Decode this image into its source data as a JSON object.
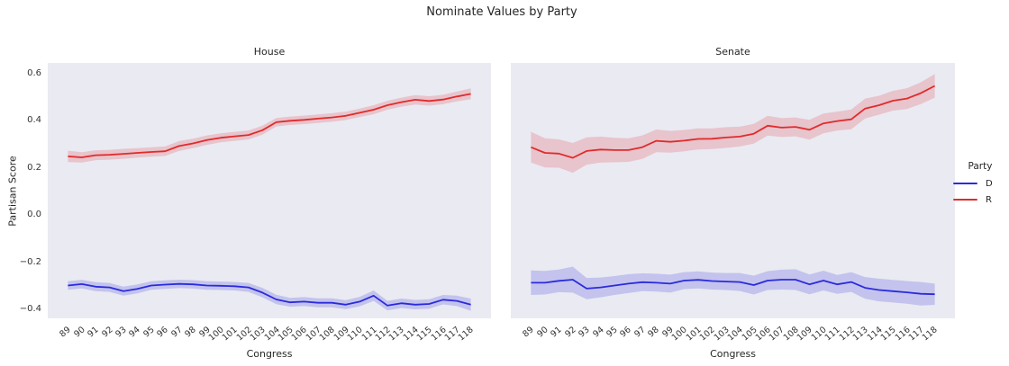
{
  "figure": {
    "title": "Nominate Values by Party",
    "panel_background": "#eaeaf2",
    "text_color": "#262626"
  },
  "legend": {
    "title": "Party",
    "entries": [
      {
        "label": "D",
        "color": "#2b2bdc"
      },
      {
        "label": "R",
        "color": "#e02b2b"
      }
    ]
  },
  "chart_data": {
    "type": "line",
    "title": "Nominate Values by Party",
    "xlabel": "Congress",
    "ylabel": "Partisan Score",
    "x": [
      89,
      90,
      91,
      92,
      93,
      94,
      95,
      96,
      97,
      98,
      99,
      100,
      101,
      102,
      103,
      104,
      105,
      106,
      107,
      108,
      109,
      110,
      111,
      112,
      113,
      114,
      115,
      116,
      117,
      118
    ],
    "ylim": [
      -0.437,
      0.645
    ],
    "yticks": [
      0.6,
      0.4,
      0.2,
      0.0,
      -0.2,
      -0.4
    ],
    "grid": false,
    "legend_position": "right",
    "band_alpha": 0.22,
    "facets": [
      {
        "label": "House",
        "series": [
          {
            "name": "D",
            "color": "#2b2bdc",
            "band_color": "rgba(60,60,225,0.22)",
            "values": [
              -0.298,
              -0.292,
              -0.303,
              -0.306,
              -0.322,
              -0.312,
              -0.298,
              -0.294,
              -0.291,
              -0.293,
              -0.298,
              -0.299,
              -0.301,
              -0.306,
              -0.328,
              -0.357,
              -0.369,
              -0.366,
              -0.371,
              -0.371,
              -0.379,
              -0.366,
              -0.341,
              -0.383,
              -0.373,
              -0.379,
              -0.376,
              -0.358,
              -0.363,
              -0.379
            ],
            "ci": [
              0.018,
              0.018,
              0.019,
              0.019,
              0.019,
              0.019,
              0.018,
              0.018,
              0.018,
              0.018,
              0.018,
              0.018,
              0.018,
              0.019,
              0.02,
              0.02,
              0.019,
              0.019,
              0.019,
              0.019,
              0.019,
              0.02,
              0.022,
              0.02,
              0.02,
              0.02,
              0.02,
              0.02,
              0.022,
              0.026
            ]
          },
          {
            "name": "R",
            "color": "#e02b2b",
            "band_color": "rgba(225,45,55,0.20)",
            "values": [
              0.249,
              0.245,
              0.254,
              0.256,
              0.26,
              0.264,
              0.268,
              0.271,
              0.293,
              0.304,
              0.318,
              0.328,
              0.334,
              0.34,
              0.36,
              0.394,
              0.4,
              0.404,
              0.409,
              0.414,
              0.421,
              0.434,
              0.447,
              0.466,
              0.479,
              0.489,
              0.484,
              0.49,
              0.503,
              0.514
            ],
            "ci": [
              0.024,
              0.022,
              0.021,
              0.021,
              0.021,
              0.02,
              0.02,
              0.02,
              0.021,
              0.02,
              0.02,
              0.019,
              0.019,
              0.019,
              0.019,
              0.018,
              0.018,
              0.018,
              0.018,
              0.018,
              0.018,
              0.018,
              0.019,
              0.019,
              0.019,
              0.02,
              0.02,
              0.02,
              0.021,
              0.023
            ]
          }
        ]
      },
      {
        "label": "Senate",
        "series": [
          {
            "name": "D",
            "color": "#2b2bdc",
            "band_color": "rgba(60,60,225,0.22)",
            "values": [
              -0.286,
              -0.286,
              -0.278,
              -0.273,
              -0.311,
              -0.306,
              -0.298,
              -0.29,
              -0.284,
              -0.286,
              -0.29,
              -0.277,
              -0.274,
              -0.279,
              -0.281,
              -0.283,
              -0.296,
              -0.277,
              -0.273,
              -0.273,
              -0.293,
              -0.277,
              -0.293,
              -0.283,
              -0.308,
              -0.317,
              -0.322,
              -0.327,
              -0.333,
              -0.335
            ],
            "ci": [
              0.052,
              0.05,
              0.048,
              0.055,
              0.045,
              0.042,
              0.04,
              0.04,
              0.038,
              0.038,
              0.038,
              0.036,
              0.036,
              0.036,
              0.036,
              0.038,
              0.04,
              0.04,
              0.042,
              0.044,
              0.042,
              0.042,
              0.04,
              0.042,
              0.046,
              0.048,
              0.048,
              0.048,
              0.05,
              0.045
            ]
          },
          {
            "name": "R",
            "color": "#e02b2b",
            "band_color": "rgba(225,45,55,0.20)",
            "values": [
              0.288,
              0.264,
              0.261,
              0.243,
              0.272,
              0.278,
              0.276,
              0.276,
              0.288,
              0.315,
              0.311,
              0.316,
              0.323,
              0.324,
              0.329,
              0.333,
              0.345,
              0.379,
              0.371,
              0.374,
              0.362,
              0.389,
              0.399,
              0.406,
              0.452,
              0.466,
              0.485,
              0.494,
              0.517,
              0.548
            ],
            "ci": [
              0.065,
              0.062,
              0.06,
              0.063,
              0.058,
              0.055,
              0.052,
              0.05,
              0.05,
              0.048,
              0.046,
              0.045,
              0.045,
              0.044,
              0.044,
              0.042,
              0.042,
              0.042,
              0.04,
              0.04,
              0.042,
              0.042,
              0.04,
              0.042,
              0.042,
              0.04,
              0.042,
              0.044,
              0.046,
              0.05
            ]
          }
        ]
      }
    ]
  }
}
